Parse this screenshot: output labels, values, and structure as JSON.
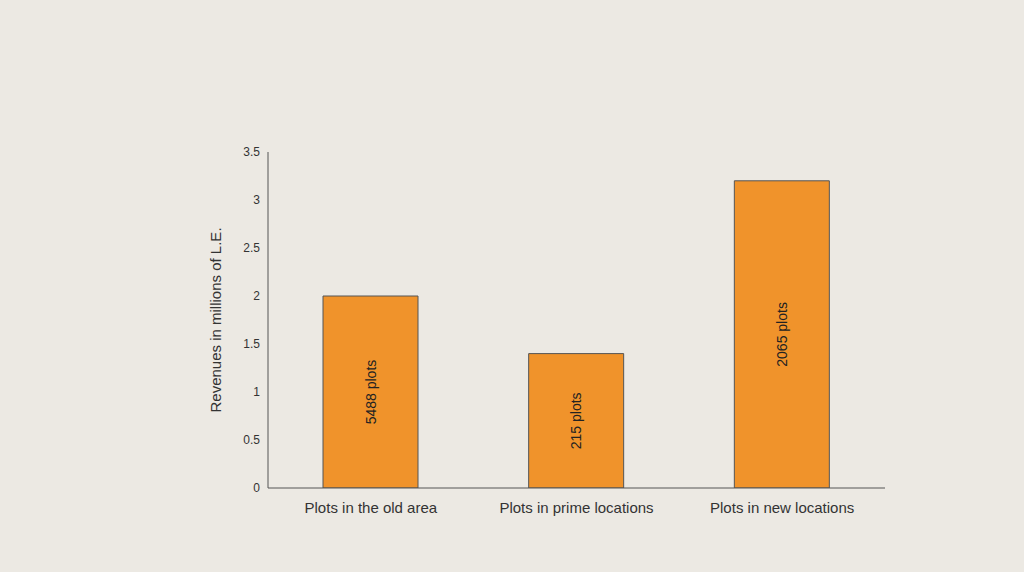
{
  "chart_data": {
    "type": "bar",
    "y_label": "Revenues in millions of L.E.",
    "categories": [
      "Plots in the old area",
      "Plots in prime locations",
      "Plots in new locations"
    ],
    "values": [
      2,
      1.4,
      3.2
    ],
    "annotations": [
      "5488 plots",
      "215 plots",
      "2065 plots"
    ],
    "color": "#f0932b",
    "ylim": [
      0,
      3.5
    ],
    "yticks": [
      0,
      0.5,
      1,
      1.5,
      2,
      2.5,
      3,
      3.5
    ],
    "grid": false
  }
}
